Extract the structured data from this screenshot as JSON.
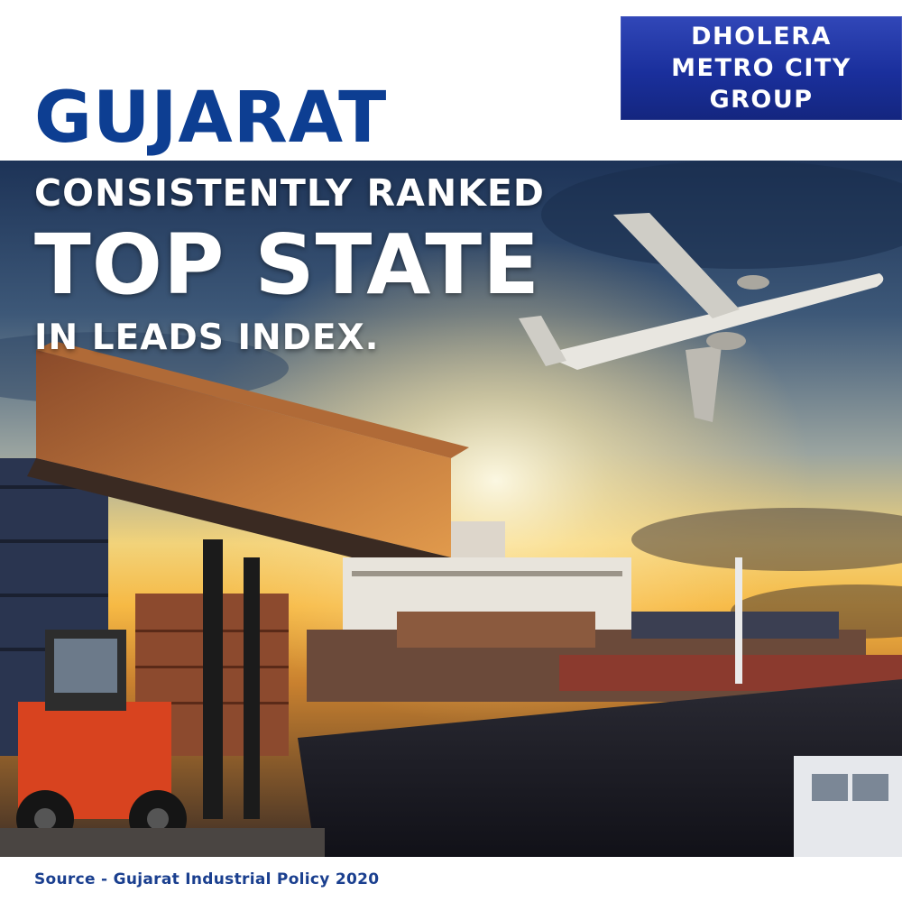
{
  "badge": {
    "line1": "DHOLERA",
    "line2": "METRO CITY",
    "line3": "GROUP",
    "color": "#1f33a8"
  },
  "headline": {
    "state": "GUJARAT",
    "line1": "CONSISTENTLY RANKED",
    "line2": "TOP STATE",
    "line3": "IN LEADS INDEX.",
    "state_color": "#0d3e92"
  },
  "footer": {
    "source": "Source - Gujarat Industrial Policy 2020"
  },
  "photo": {
    "subjects": [
      "cargo-container",
      "airplane",
      "container-ship",
      "forklift",
      "trucks",
      "sunset-sky"
    ]
  }
}
